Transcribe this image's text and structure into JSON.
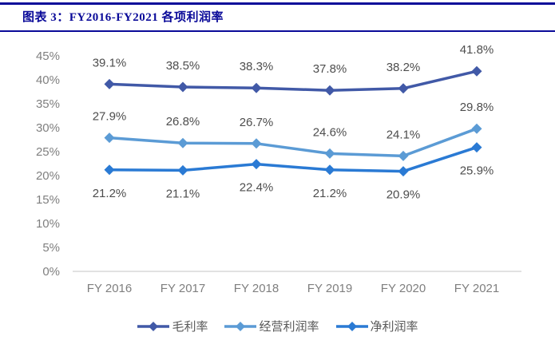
{
  "header": {
    "title": "图表 3：FY2016-FY2021 各项利润率"
  },
  "colors": {
    "header_navy": "#0a0a99",
    "axis_line": "#d9d9d9",
    "axis_label": "#7f7f7f",
    "data_label": "#4d4d4d",
    "legend_label": "#595959",
    "background": "#ffffff",
    "series_gross": "#4159a7",
    "series_operating": "#5b9bd5",
    "series_net": "#2a7ad4"
  },
  "chart_data": {
    "type": "line",
    "categories": [
      "FY 2016",
      "FY 2017",
      "FY 2018",
      "FY 2019",
      "FY 2020",
      "FY 2021"
    ],
    "series": [
      {
        "name": "毛利率",
        "color": "#4159a7",
        "values": [
          39.1,
          38.5,
          38.3,
          37.8,
          38.2,
          41.8
        ],
        "label_position": "above"
      },
      {
        "name": "经营利润率",
        "color": "#5b9bd5",
        "values": [
          27.9,
          26.8,
          26.7,
          24.6,
          24.1,
          29.8
        ],
        "label_position": "above"
      },
      {
        "name": "净利润率",
        "color": "#2a7ad4",
        "values": [
          21.2,
          21.1,
          22.4,
          21.2,
          20.9,
          25.9
        ],
        "label_position": "below"
      }
    ],
    "ylim": [
      0,
      45
    ],
    "y_tick_step": 5,
    "y_tick_labels": [
      "0%",
      "5%",
      "10%",
      "15%",
      "20%",
      "25%",
      "30%",
      "35%",
      "40%",
      "45%"
    ],
    "y_tick_suffix": "%",
    "data_label_suffix": "%",
    "marker": "diamond",
    "grid": false,
    "data_labels": true,
    "legend_position": "bottom"
  }
}
